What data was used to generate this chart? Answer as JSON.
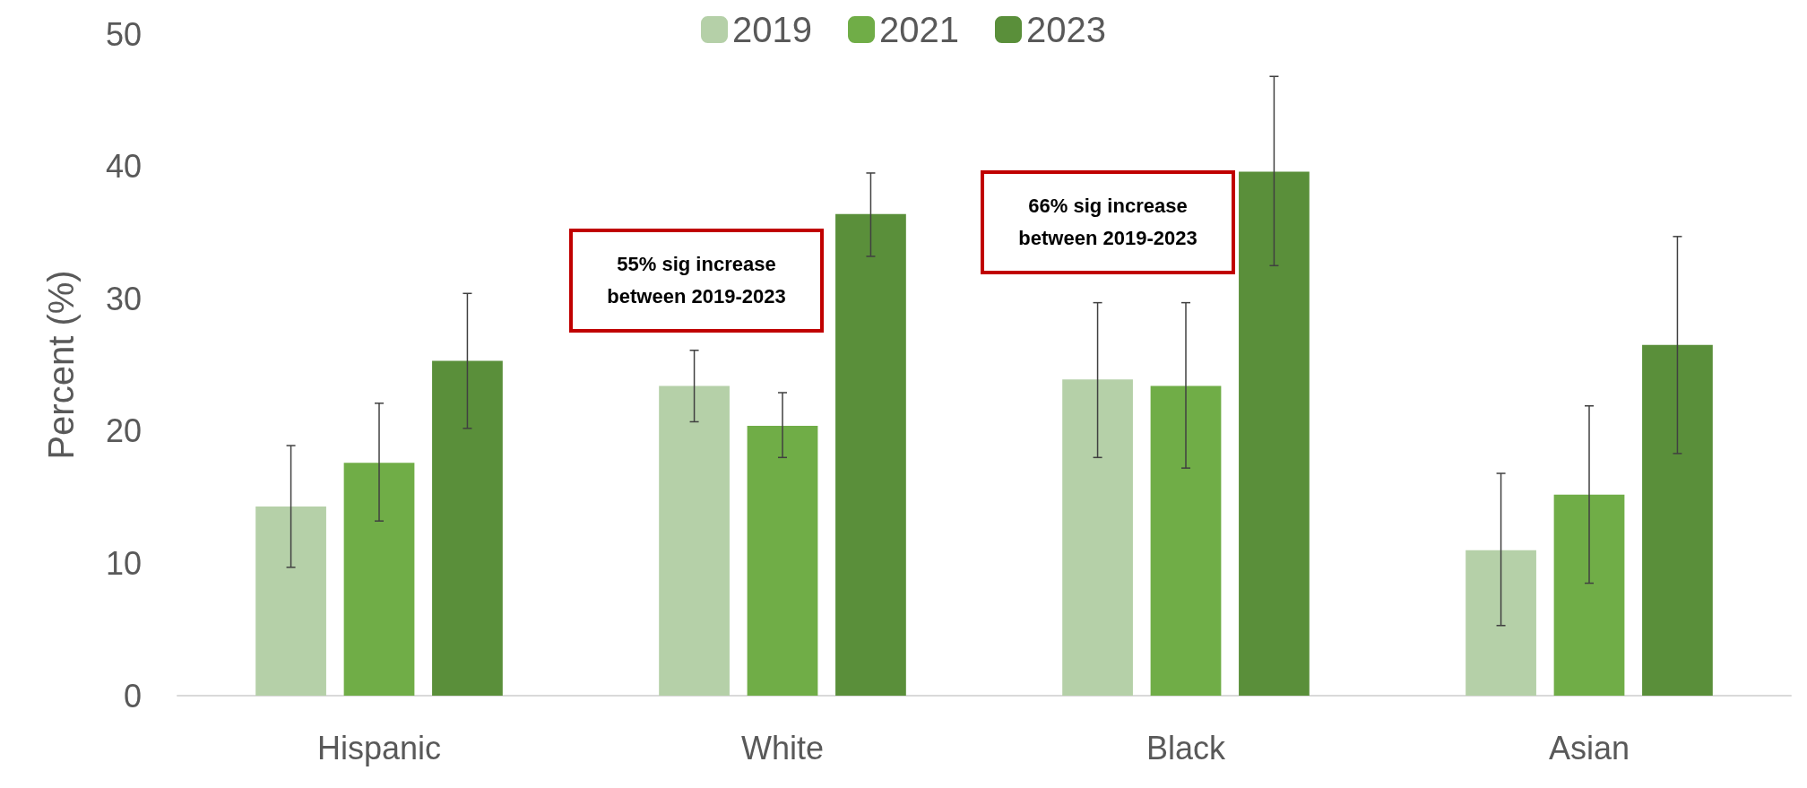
{
  "chart_data": {
    "type": "bar",
    "ylabel": "Percent (%)",
    "categories": [
      "Hispanic",
      "White",
      "Black",
      "Asian"
    ],
    "series": [
      {
        "name": "2019",
        "color": "#b5d0a8",
        "values": [
          14.3,
          23.4,
          23.9,
          11.0
        ],
        "errors": [
          [
            9.7,
            18.9
          ],
          [
            20.7,
            26.1
          ],
          [
            18.0,
            29.7
          ],
          [
            5.3,
            16.8
          ]
        ]
      },
      {
        "name": "2021",
        "color": "#70ad47",
        "values": [
          17.6,
          20.4,
          23.4,
          15.2
        ],
        "errors": [
          [
            13.2,
            22.1
          ],
          [
            18.0,
            22.9
          ],
          [
            17.2,
            29.7
          ],
          [
            8.5,
            21.9
          ]
        ]
      },
      {
        "name": "2023",
        "color": "#5a8f3a",
        "values": [
          25.3,
          36.4,
          39.6,
          26.5
        ],
        "errors": [
          [
            20.2,
            30.4
          ],
          [
            33.2,
            39.5
          ],
          [
            32.5,
            46.8
          ],
          [
            18.3,
            34.7
          ]
        ]
      }
    ],
    "ylim": [
      0,
      50
    ],
    "yticks": [
      0,
      10,
      20,
      30,
      40,
      50
    ],
    "grid": false,
    "legend": "top",
    "annotations": [
      "55% sig increase\nbetween 2019-2023",
      "66% sig increase\nbetween 2019-2023"
    ]
  }
}
